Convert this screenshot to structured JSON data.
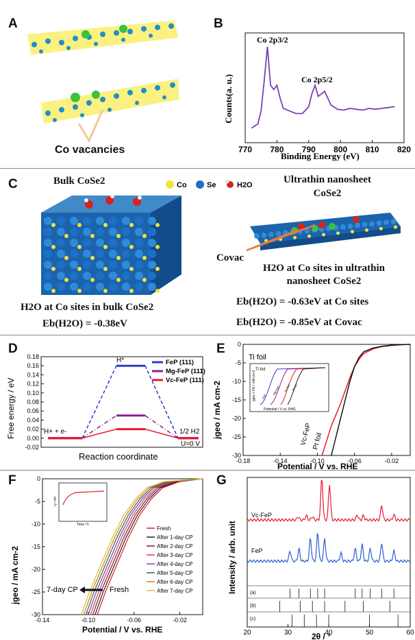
{
  "panel_letters": [
    "A",
    "B",
    "C",
    "D",
    "E",
    "F",
    "G"
  ],
  "panelA": {
    "caption": "Co vacancies"
  },
  "panelB": {
    "peak1": "Co 2p3/2",
    "peak2": "Co 2p5/2",
    "ylabel": "Counts(a. u.)",
    "xlabel": "Binding Energy (eV)",
    "xticks": [
      "770",
      "780",
      "790",
      "800",
      "810",
      "820"
    ]
  },
  "panelC": {
    "bulk_title": "Bulk CoSe2",
    "legend": [
      "Co",
      "Se",
      "H2O"
    ],
    "nano_title_1": "Ultrathin nanosheet",
    "nano_title_2": "CoSe2",
    "covac_label": "Covac",
    "bulk_caption": "H2O at Co sites in bulk CoSe2",
    "bulk_energy": "Eb(H2O) = -0.38eV",
    "nano_caption_1": "H2O at Co sites in ultrathin",
    "nano_caption_2": "nanosheet CoSe2",
    "nano_energy_1": "Eb(H2O) = -0.63eV at Co sites",
    "nano_energy_2": "Eb(H2O) = -0.85eV at Covac"
  },
  "panelD": {
    "ylabel": "Free energy / eV",
    "xlabel": "Reaction coordinate",
    "state_left": "H+ + e-",
    "state_mid": "H*",
    "state_right": "1/2 H2",
    "note": "U=0 V",
    "yticks": [
      "0.18",
      "0.16",
      "0.14",
      "0.12",
      "0.10",
      "0.08",
      "0.06",
      "0.04",
      "0.02",
      "0.00",
      "-0.02"
    ]
  },
  "panelE": {
    "label_ti": "Ti foil",
    "label_vc": "Vc-FeP",
    "label_pt": "Pt foil",
    "ylabel": "jgeo / mA cm-2",
    "xlabel": "Potential / V vs. RHE",
    "xticks": [
      "-0.18",
      "-0.14",
      "-0.10",
      "-0.06",
      "-0.02"
    ],
    "yticks": [
      "0",
      "-5",
      "-10",
      "-15",
      "-20",
      "-25",
      "-30"
    ],
    "inset_title": "Ti foil",
    "inset_xlabel": "Potential / V vs. RHE",
    "inset_ylabel": "jgeo × FE / mA cm-2",
    "inset_curves": [
      "FeP",
      "Mg-FeP",
      "Vc-FeP",
      "Pt foil"
    ]
  },
  "panelF": {
    "ylabel": "jgeo / mA cm-2",
    "xlabel": "Potential / V vs. RHE",
    "xticks": [
      "-0.14",
      "-0.10",
      "-0.06",
      "-0.02"
    ],
    "yticks": [
      "0",
      "-5",
      "-10",
      "-15",
      "-20",
      "-25",
      "-30"
    ],
    "arrow_left": "7-day CP",
    "arrow_right": "Fresh",
    "inset_ylabel": "η / mV",
    "inset_xlabel": "Time / h",
    "legend": [
      "Fresh",
      "After 1-day CP",
      "After 2-day CP",
      "After 3-day CP",
      "After 4-day CP",
      "After 5-day CP",
      "After 6-day CP",
      "After 7-day CP"
    ]
  },
  "panelG": {
    "ylabel": "Intensity / arb. unit",
    "xlabel": "2θ / °",
    "xticks": [
      "20",
      "30",
      "40",
      "50",
      "60"
    ],
    "trace1": "Vc-FeP",
    "trace2": "FeP",
    "ref_a": "(a)",
    "ref_b": "(b)",
    "ref_c": "(c)"
  },
  "chart_data": [
    {
      "type": "line",
      "panel": "B",
      "xlabel": "Binding Energy (eV)",
      "ylabel": "Counts(a. u.)",
      "xlim": [
        770,
        820
      ],
      "series": [
        {
          "x": [
            772,
            774,
            775,
            776,
            777,
            778,
            779,
            780,
            781,
            782,
            784,
            786,
            788,
            790,
            791,
            792,
            793,
            794,
            795,
            796,
            797,
            799,
            801,
            803,
            805,
            807,
            809,
            811,
            813,
            815,
            817
          ],
          "y": [
            0.05,
            0.1,
            0.25,
            0.6,
            1.0,
            0.55,
            0.5,
            0.55,
            0.4,
            0.28,
            0.25,
            0.22,
            0.22,
            0.3,
            0.45,
            0.55,
            0.42,
            0.45,
            0.48,
            0.4,
            0.32,
            0.27,
            0.26,
            0.28,
            0.27,
            0.26,
            0.28,
            0.27,
            0.28,
            0.29,
            0.3
          ]
        }
      ]
    },
    {
      "type": "line",
      "panel": "D",
      "xlabel": "Reaction coordinate",
      "ylabel": "Free energy / eV",
      "ylim": [
        -0.02,
        0.18
      ],
      "categories": [
        "H+ + e-",
        "H*",
        "1/2 H2"
      ],
      "series": [
        {
          "name": "FeP (111)",
          "values": [
            0,
            0.16,
            0
          ],
          "color": "#2b3cc6"
        },
        {
          "name": "Mg-FeP (111)",
          "values": [
            0,
            0.05,
            0
          ],
          "color": "#8b1f8f"
        },
        {
          "name": "Vc-FeP (111)",
          "values": [
            0,
            0.02,
            0
          ],
          "color": "#e8192c"
        }
      ]
    },
    {
      "type": "line",
      "panel": "E",
      "xlabel": "Potential / V vs. RHE",
      "ylabel": "jgeo / mA cm-2",
      "xlim": [
        -0.18,
        0.0
      ],
      "ylim": [
        -30,
        0
      ],
      "series": [
        {
          "name": "Vc-FeP",
          "color": "#e8192c",
          "x": [
            -0.095,
            -0.09,
            -0.085,
            -0.08,
            -0.075,
            -0.07,
            -0.065,
            -0.06,
            -0.055,
            -0.05,
            -0.04,
            -0.03,
            -0.02,
            -0.01,
            0.0
          ],
          "y": [
            -30,
            -26,
            -22,
            -19,
            -16,
            -12.5,
            -9,
            -6,
            -4,
            -2.5,
            -1.2,
            -0.6,
            -0.3,
            -0.1,
            0
          ]
        },
        {
          "name": "Pt foil",
          "color": "#111111",
          "x": [
            -0.085,
            -0.08,
            -0.075,
            -0.07,
            -0.065,
            -0.06,
            -0.055,
            -0.05,
            -0.04,
            -0.03,
            -0.02,
            -0.01,
            0.0
          ],
          "y": [
            -30,
            -25,
            -20,
            -15,
            -10,
            -6,
            -3.5,
            -2,
            -1,
            -0.5,
            -0.2,
            -0.1,
            0
          ]
        }
      ]
    },
    {
      "type": "line",
      "panel": "F",
      "xlabel": "Potential / V vs. RHE",
      "ylabel": "jgeo / mA cm-2",
      "xlim": [
        -0.14,
        0.0
      ],
      "ylim": [
        -30,
        0
      ],
      "series": [
        {
          "name": "Fresh",
          "color": "#e8192c",
          "x": [
            -0.092,
            -0.085,
            -0.075,
            -0.065,
            -0.055,
            -0.045,
            -0.035,
            -0.02,
            0.0
          ],
          "y": [
            -30,
            -25,
            -19,
            -13,
            -8,
            -4.5,
            -2,
            -0.6,
            0
          ]
        },
        {
          "name": "After 1-day CP",
          "color": "#222222",
          "x": [
            -0.094,
            -0.087,
            -0.077,
            -0.067,
            -0.057,
            -0.047,
            -0.037,
            -0.022,
            0.0
          ],
          "y": [
            -30,
            -25,
            -19,
            -13,
            -8,
            -4.5,
            -2,
            -0.6,
            0
          ]
        },
        {
          "name": "After 2-day CP",
          "color": "#8a1a1a",
          "x": [
            -0.096,
            -0.089,
            -0.079,
            -0.069,
            -0.059,
            -0.049,
            -0.039,
            -0.024,
            0.0
          ],
          "y": [
            -30,
            -25,
            -19,
            -13,
            -8,
            -4.5,
            -2,
            -0.6,
            0
          ]
        },
        {
          "name": "After 3-day CP",
          "color": "#c2407a",
          "x": [
            -0.098,
            -0.091,
            -0.081,
            -0.071,
            -0.061,
            -0.051,
            -0.041,
            -0.026,
            0.0
          ],
          "y": [
            -30,
            -25,
            -19,
            -13,
            -8,
            -4.5,
            -2,
            -0.6,
            0
          ]
        },
        {
          "name": "After 4-day CP",
          "color": "#7a3fb0",
          "x": [
            -0.1,
            -0.093,
            -0.083,
            -0.073,
            -0.063,
            -0.053,
            -0.043,
            -0.028,
            0.0
          ],
          "y": [
            -30,
            -25,
            -19,
            -13,
            -8,
            -4.5,
            -2,
            -0.6,
            0
          ]
        },
        {
          "name": "After 5-day CP",
          "color": "#2a6b3a",
          "x": [
            -0.102,
            -0.095,
            -0.085,
            -0.075,
            -0.065,
            -0.055,
            -0.045,
            -0.03,
            0.0
          ],
          "y": [
            -30,
            -25,
            -19,
            -13,
            -8,
            -4.5,
            -2,
            -0.6,
            0
          ]
        },
        {
          "name": "After 6-day CP",
          "color": "#e07a1a",
          "x": [
            -0.104,
            -0.097,
            -0.087,
            -0.077,
            -0.067,
            -0.057,
            -0.047,
            -0.032,
            0.0
          ],
          "y": [
            -30,
            -25,
            -19,
            -13,
            -8,
            -4.5,
            -2,
            -0.6,
            0
          ]
        },
        {
          "name": "After 7-day CP",
          "color": "#d4c13a",
          "x": [
            -0.106,
            -0.099,
            -0.089,
            -0.079,
            -0.069,
            -0.059,
            -0.049,
            -0.034,
            0.0
          ],
          "y": [
            -30,
            -25,
            -19,
            -13,
            -8,
            -4.5,
            -2,
            -0.6,
            0
          ]
        }
      ]
    },
    {
      "type": "line",
      "panel": "G",
      "xlabel": "2θ / °",
      "ylabel": "Intensity / arb. unit",
      "xlim": [
        20,
        60
      ],
      "series": [
        {
          "name": "Vc-FeP",
          "color": "#e8192c",
          "peaks": [
            [
              32.5,
              0.08
            ],
            [
              34.5,
              0.1
            ],
            [
              36.0,
              0.08
            ],
            [
              38.3,
              1.0
            ],
            [
              40.2,
              0.85
            ],
            [
              47.0,
              0.12
            ],
            [
              48.5,
              0.1
            ],
            [
              53.0,
              0.35
            ],
            [
              56.0,
              0.12
            ]
          ]
        },
        {
          "name": "FeP",
          "color": "#2b5bd4",
          "peaks": [
            [
              30.5,
              0.25
            ],
            [
              32.7,
              0.3
            ],
            [
              35.5,
              0.55
            ],
            [
              37.3,
              0.7
            ],
            [
              39.0,
              0.55
            ],
            [
              43.0,
              0.2
            ],
            [
              46.5,
              0.3
            ],
            [
              48.2,
              0.4
            ],
            [
              50.2,
              0.3
            ],
            [
              53.0,
              0.45
            ],
            [
              56.0,
              0.25
            ]
          ]
        }
      ]
    }
  ]
}
